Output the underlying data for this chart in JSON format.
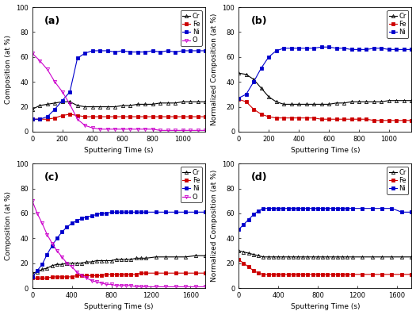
{
  "panels": [
    "a",
    "b",
    "c",
    "d"
  ],
  "a": {
    "x": [
      0,
      50,
      100,
      150,
      200,
      250,
      300,
      350,
      400,
      450,
      500,
      550,
      600,
      650,
      700,
      750,
      800,
      850,
      900,
      950,
      1000,
      1050,
      1100,
      1150
    ],
    "Cr": [
      18,
      21,
      22,
      23,
      24,
      24,
      21,
      20,
      20,
      20,
      20,
      20,
      21,
      21,
      22,
      22,
      22,
      23,
      23,
      23,
      24,
      24,
      24,
      24
    ],
    "Fe": [
      10,
      10,
      10,
      11,
      13,
      14,
      13,
      12,
      12,
      12,
      12,
      12,
      12,
      12,
      12,
      12,
      12,
      12,
      12,
      12,
      12,
      12,
      12,
      12
    ],
    "Ni": [
      10,
      10,
      12,
      18,
      25,
      32,
      59,
      63,
      65,
      65,
      65,
      64,
      65,
      64,
      64,
      64,
      65,
      64,
      65,
      64,
      65,
      65,
      65,
      65
    ],
    "O": [
      63,
      57,
      50,
      40,
      32,
      22,
      10,
      5,
      3,
      2,
      2,
      2,
      2,
      2,
      2,
      2,
      2,
      1,
      1,
      1,
      1,
      1,
      1,
      1
    ],
    "ylabel": "Composition (at %)",
    "xlabel": "Sputtering Time (s)",
    "xlim": [
      0,
      1150
    ],
    "ylim": [
      0,
      100
    ],
    "xticks": [
      0,
      200,
      400,
      600,
      800,
      1000
    ],
    "has_O": true
  },
  "b": {
    "x": [
      0,
      50,
      100,
      150,
      200,
      250,
      300,
      350,
      400,
      450,
      500,
      550,
      600,
      650,
      700,
      750,
      800,
      850,
      900,
      950,
      1000,
      1050,
      1100,
      1150
    ],
    "Cr": [
      47,
      46,
      42,
      35,
      28,
      24,
      22,
      22,
      22,
      22,
      22,
      22,
      22,
      23,
      23,
      24,
      24,
      24,
      24,
      24,
      25,
      25,
      25,
      25
    ],
    "Fe": [
      26,
      24,
      18,
      14,
      12,
      11,
      11,
      11,
      11,
      11,
      11,
      10,
      10,
      10,
      10,
      10,
      10,
      10,
      9,
      9,
      9,
      9,
      9,
      9
    ],
    "Ni": [
      27,
      30,
      40,
      51,
      60,
      65,
      67,
      67,
      67,
      67,
      67,
      68,
      68,
      67,
      67,
      66,
      66,
      66,
      67,
      67,
      66,
      66,
      66,
      66
    ],
    "ylabel": "Normalized Composition (at %)",
    "xlabel": "Sputtering Time (s)",
    "xlim": [
      0,
      1150
    ],
    "ylim": [
      0,
      100
    ],
    "xticks": [
      0,
      200,
      400,
      600,
      800,
      1000
    ],
    "has_O": false
  },
  "c": {
    "x": [
      0,
      50,
      100,
      150,
      200,
      250,
      300,
      350,
      400,
      450,
      500,
      550,
      600,
      650,
      700,
      750,
      800,
      850,
      900,
      950,
      1000,
      1050,
      1100,
      1150,
      1250,
      1350,
      1450,
      1550,
      1650,
      1750
    ],
    "Cr": [
      12,
      13,
      15,
      16,
      18,
      19,
      19,
      20,
      20,
      20,
      20,
      21,
      21,
      22,
      22,
      22,
      22,
      23,
      23,
      23,
      23,
      24,
      24,
      24,
      25,
      25,
      25,
      25,
      26,
      26
    ],
    "Fe": [
      8,
      8,
      8,
      8,
      9,
      9,
      9,
      9,
      9,
      10,
      10,
      10,
      10,
      10,
      10,
      11,
      11,
      11,
      11,
      11,
      11,
      11,
      12,
      12,
      12,
      12,
      12,
      12,
      12,
      12
    ],
    "Ni": [
      9,
      14,
      19,
      27,
      34,
      40,
      45,
      49,
      52,
      54,
      56,
      57,
      58,
      59,
      60,
      60,
      61,
      61,
      61,
      61,
      61,
      61,
      61,
      61,
      61,
      61,
      61,
      61,
      61,
      61
    ],
    "O": [
      70,
      60,
      52,
      43,
      36,
      30,
      25,
      20,
      17,
      13,
      10,
      8,
      6,
      5,
      4,
      3,
      3,
      2,
      2,
      2,
      2,
      1,
      1,
      1,
      1,
      1,
      1,
      1,
      1,
      1
    ],
    "ylabel": "Composition (at %)",
    "xlabel": "Sputtering Time (s)",
    "xlim": [
      0,
      1750
    ],
    "ylim": [
      0,
      100
    ],
    "xticks": [
      0,
      400,
      800,
      1200,
      1600
    ],
    "has_O": true
  },
  "d": {
    "x": [
      0,
      50,
      100,
      150,
      200,
      250,
      300,
      350,
      400,
      450,
      500,
      550,
      600,
      650,
      700,
      750,
      800,
      850,
      900,
      950,
      1000,
      1050,
      1100,
      1150,
      1250,
      1350,
      1450,
      1550,
      1650,
      1750
    ],
    "Cr": [
      30,
      29,
      28,
      27,
      26,
      25,
      25,
      25,
      25,
      25,
      25,
      25,
      25,
      25,
      25,
      25,
      25,
      25,
      25,
      25,
      25,
      25,
      25,
      25,
      25,
      25,
      25,
      25,
      25,
      25
    ],
    "Fe": [
      23,
      20,
      17,
      14,
      12,
      11,
      11,
      11,
      11,
      11,
      11,
      11,
      11,
      11,
      11,
      11,
      11,
      11,
      11,
      11,
      11,
      11,
      11,
      11,
      11,
      11,
      11,
      11,
      11,
      11
    ],
    "Ni": [
      47,
      51,
      55,
      59,
      62,
      64,
      64,
      64,
      64,
      64,
      64,
      64,
      64,
      64,
      64,
      64,
      64,
      64,
      64,
      64,
      64,
      64,
      64,
      64,
      64,
      64,
      64,
      64,
      61,
      61
    ],
    "ylabel": "Normalized Composition (at %)",
    "xlabel": "Sputtering Time (s)",
    "xlim": [
      0,
      1750
    ],
    "ylim": [
      0,
      100
    ],
    "xticks": [
      0,
      400,
      800,
      1200,
      1600
    ],
    "has_O": false
  },
  "colors": {
    "Cr": "#000000",
    "Fe": "#cc0000",
    "Ni": "#0000cc",
    "O": "#cc00cc"
  },
  "marker_Cr": "^",
  "marker_Fe": "s",
  "marker_Ni": "s",
  "marker_O": "v",
  "marker_size": 3,
  "line_width": 0.8,
  "label_fontsize": 6.5,
  "tick_fontsize": 6,
  "legend_fontsize": 6,
  "panel_label_fontsize": 9
}
